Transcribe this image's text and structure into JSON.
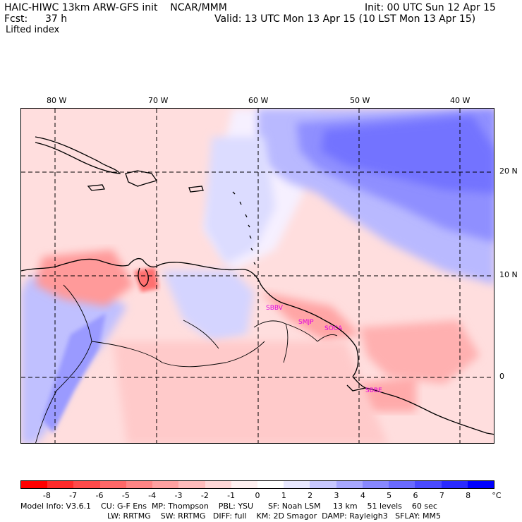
{
  "header": {
    "title": "HAIC-HIWC 13km ARW-GFS init    NCAR/MMM",
    "init": "Init: 00 UTC Sun 12 Apr 15",
    "fcst_label": "Fcst:",
    "fcst_value": "37 h",
    "valid": "Valid: 13 UTC Mon 13 Apr 15 (10 LST Mon 13 Apr 15)",
    "field": "Lifted index"
  },
  "map": {
    "lon_labels": [
      "80 W",
      "70 W",
      "60 W",
      "50 W",
      "40 W"
    ],
    "lat_labels": [
      "20 N",
      "10 N",
      "0"
    ],
    "stations": [
      "SBBV",
      "SMJP",
      "SOCA",
      "SBBE"
    ]
  },
  "colorbar": {
    "labels": [
      "-8",
      "-7",
      "-6",
      "-5",
      "-4",
      "-3",
      "-2",
      "-1",
      "0",
      "1",
      "2",
      "3",
      "4",
      "5",
      "6",
      "7",
      "8"
    ],
    "units": "°C",
    "colors": [
      "#ff0000",
      "#ff2a2a",
      "#ff4a4a",
      "#ff6868",
      "#ff8585",
      "#ffa1a1",
      "#ffbcbc",
      "#ffd7d7",
      "#fff0f0",
      "#ffffff",
      "#e8e8ff",
      "#c8c8ff",
      "#a8a8ff",
      "#8888ff",
      "#6a6aff",
      "#4a4aff",
      "#2a2aff",
      "#0000ff"
    ]
  },
  "footer": {
    "line1": "Model Info: V3.6.1    CU: G-F Ens  MP: Thompson    PBL: YSU      SF: Noah LSM     13 km    51 levels    60 sec",
    "line2": "LW: RRTMG    SW: RRTMG   DIFF: full    KM: 2D Smagor  DAMP: Rayleigh3   SFLAY: MM5"
  }
}
